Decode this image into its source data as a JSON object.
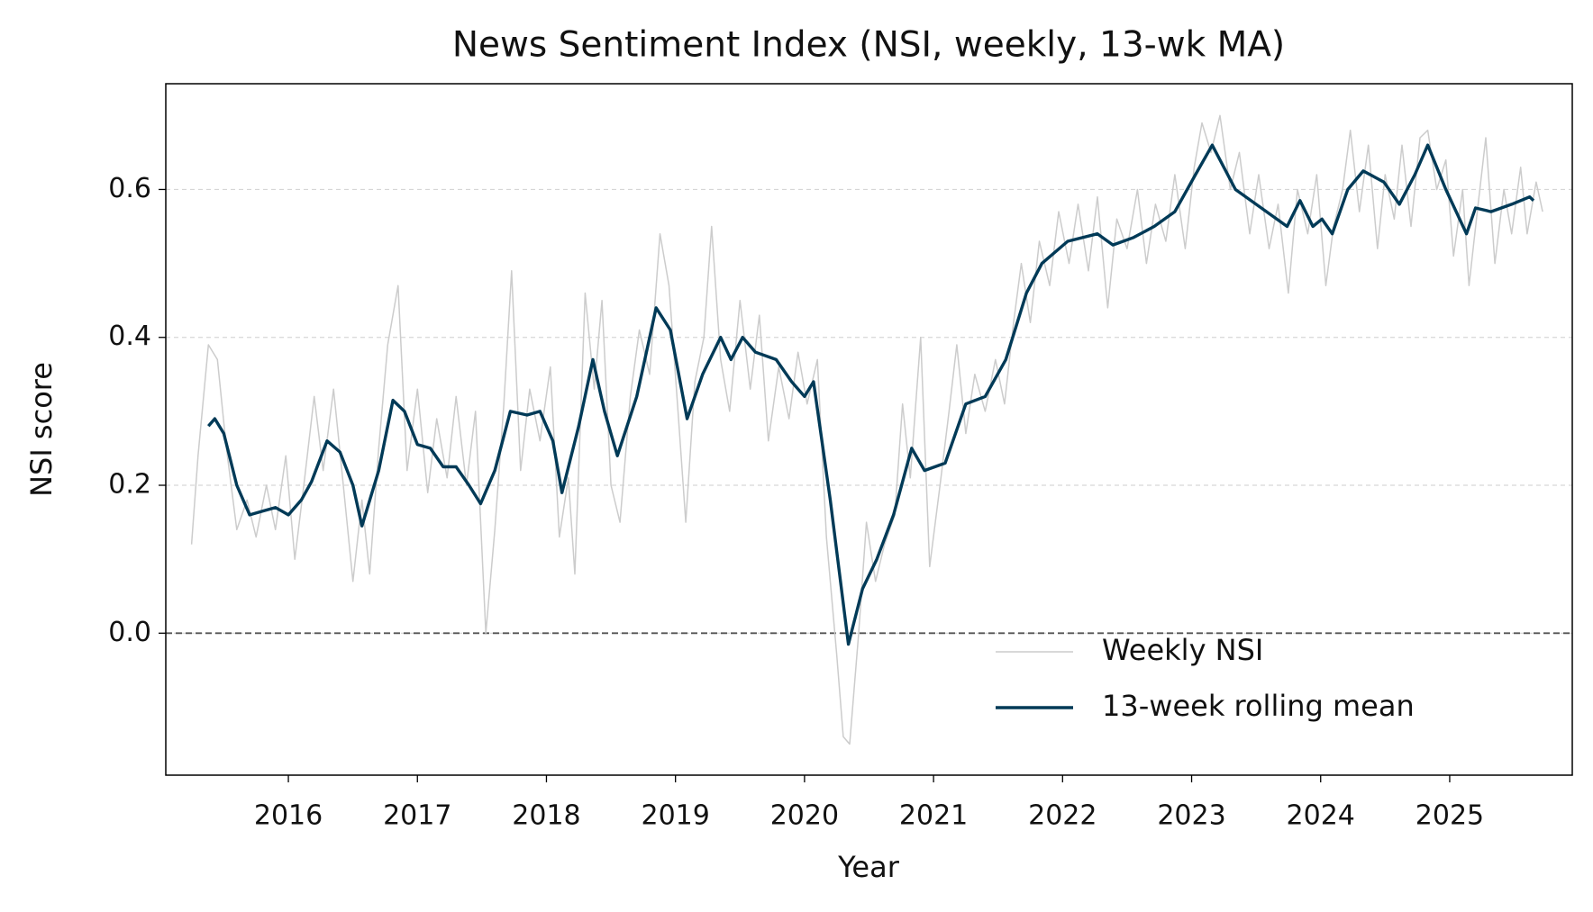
{
  "chart_data": {
    "type": "line",
    "title": "News Sentiment Index (NSI, weekly, 13-wk MA)",
    "x_label": "Year",
    "y_label": "NSI score",
    "xlim": [
      2015.05,
      2025.95
    ],
    "xticks": [
      2016,
      2017,
      2018,
      2019,
      2020,
      2021,
      2022,
      2023,
      2024,
      2025
    ],
    "ylim": [
      -0.192,
      0.743
    ],
    "yticks": [
      {
        "value": 0,
        "label": "0.0"
      },
      0.2,
      0.4,
      0.6
    ],
    "grid": "y",
    "zero_line": true,
    "legend": "lower right",
    "series": [
      {
        "name": "Weekly NSI",
        "color": "#cccccc",
        "width": 1.5,
        "x": [
          2015.25,
          2015.3,
          2015.38,
          2015.45,
          2015.52,
          2015.6,
          2015.68,
          2015.75,
          2015.83,
          2015.9,
          2015.98,
          2016.05,
          2016.12,
          2016.2,
          2016.27,
          2016.35,
          2016.42,
          2016.5,
          2016.57,
          2016.63,
          2016.7,
          2016.77,
          2016.85,
          2016.92,
          2017.0,
          2017.08,
          2017.15,
          2017.23,
          2017.3,
          2017.38,
          2017.45,
          2017.53,
          2017.6,
          2017.67,
          2017.73,
          2017.8,
          2017.87,
          2017.95,
          2018.03,
          2018.1,
          2018.17,
          2018.22,
          2018.3,
          2018.37,
          2018.43,
          2018.5,
          2018.57,
          2018.65,
          2018.72,
          2018.8,
          2018.88,
          2018.95,
          2019.02,
          2019.08,
          2019.15,
          2019.22,
          2019.28,
          2019.35,
          2019.42,
          2019.5,
          2019.58,
          2019.65,
          2019.72,
          2019.8,
          2019.88,
          2019.95,
          2020.02,
          2020.1,
          2020.17,
          2020.25,
          2020.3,
          2020.35,
          2020.42,
          2020.48,
          2020.55,
          2020.62,
          2020.7,
          2020.76,
          2020.82,
          2020.9,
          2020.97,
          2021.05,
          2021.12,
          2021.18,
          2021.25,
          2021.32,
          2021.4,
          2021.48,
          2021.55,
          2021.62,
          2021.68,
          2021.75,
          2021.82,
          2021.9,
          2021.97,
          2022.05,
          2022.12,
          2022.2,
          2022.27,
          2022.35,
          2022.42,
          2022.5,
          2022.58,
          2022.65,
          2022.72,
          2022.8,
          2022.87,
          2022.95,
          2023.02,
          2023.08,
          2023.15,
          2023.22,
          2023.3,
          2023.37,
          2023.45,
          2023.52,
          2023.6,
          2023.67,
          2023.75,
          2023.82,
          2023.9,
          2023.97,
          2024.04,
          2024.1,
          2024.17,
          2024.23,
          2024.3,
          2024.37,
          2024.44,
          2024.5,
          2024.57,
          2024.63,
          2024.7,
          2024.77,
          2024.83,
          2024.9,
          2024.97,
          2025.03,
          2025.1,
          2025.15,
          2025.22,
          2025.28,
          2025.35,
          2025.42,
          2025.48,
          2025.55,
          2025.6,
          2025.67,
          2025.72
        ],
        "values": [
          0.12,
          0.24,
          0.39,
          0.37,
          0.25,
          0.14,
          0.18,
          0.13,
          0.2,
          0.14,
          0.24,
          0.1,
          0.2,
          0.32,
          0.22,
          0.33,
          0.21,
          0.07,
          0.18,
          0.08,
          0.25,
          0.39,
          0.47,
          0.22,
          0.33,
          0.19,
          0.29,
          0.21,
          0.32,
          0.2,
          0.3,
          0.0,
          0.14,
          0.31,
          0.49,
          0.22,
          0.33,
          0.26,
          0.36,
          0.13,
          0.21,
          0.08,
          0.46,
          0.33,
          0.45,
          0.2,
          0.15,
          0.32,
          0.41,
          0.35,
          0.54,
          0.47,
          0.3,
          0.15,
          0.34,
          0.4,
          0.55,
          0.37,
          0.3,
          0.45,
          0.33,
          0.43,
          0.26,
          0.36,
          0.29,
          0.38,
          0.31,
          0.37,
          0.13,
          -0.03,
          -0.14,
          -0.15,
          0.0,
          0.15,
          0.07,
          0.12,
          0.16,
          0.31,
          0.21,
          0.4,
          0.09,
          0.2,
          0.3,
          0.39,
          0.27,
          0.35,
          0.3,
          0.37,
          0.31,
          0.42,
          0.5,
          0.42,
          0.53,
          0.47,
          0.57,
          0.5,
          0.58,
          0.49,
          0.59,
          0.44,
          0.56,
          0.52,
          0.6,
          0.5,
          0.58,
          0.53,
          0.62,
          0.52,
          0.63,
          0.69,
          0.65,
          0.7,
          0.6,
          0.65,
          0.54,
          0.62,
          0.52,
          0.58,
          0.46,
          0.6,
          0.54,
          0.62,
          0.47,
          0.55,
          0.6,
          0.68,
          0.57,
          0.66,
          0.52,
          0.62,
          0.56,
          0.66,
          0.55,
          0.67,
          0.68,
          0.6,
          0.64,
          0.51,
          0.6,
          0.47,
          0.58,
          0.67,
          0.5,
          0.6,
          0.54,
          0.63,
          0.54,
          0.61,
          0.57
        ]
      },
      {
        "name": "13-week rolling mean",
        "color": "#003a57",
        "width": 3.4,
        "x": [
          2015.38,
          2015.43,
          2015.5,
          2015.6,
          2015.7,
          2015.8,
          2015.9,
          2016.0,
          2016.1,
          2016.18,
          2016.3,
          2016.4,
          2016.5,
          2016.57,
          2016.7,
          2016.81,
          2016.9,
          2017.0,
          2017.1,
          2017.2,
          2017.3,
          2017.4,
          2017.49,
          2017.6,
          2017.72,
          2017.85,
          2017.95,
          2018.05,
          2018.12,
          2018.25,
          2018.36,
          2018.45,
          2018.55,
          2018.7,
          2018.85,
          2018.96,
          2019.09,
          2019.21,
          2019.35,
          2019.43,
          2019.52,
          2019.62,
          2019.78,
          2019.9,
          2020.0,
          2020.07,
          2020.2,
          2020.34,
          2020.45,
          2020.56,
          2020.69,
          2020.83,
          2020.93,
          2021.09,
          2021.25,
          2021.4,
          2021.56,
          2021.72,
          2021.84,
          2022.04,
          2022.27,
          2022.39,
          2022.55,
          2022.71,
          2022.87,
          2023.03,
          2023.16,
          2023.34,
          2023.58,
          2023.74,
          2023.84,
          2023.94,
          2024.01,
          2024.09,
          2024.21,
          2024.33,
          2024.49,
          2024.61,
          2024.73,
          2024.83,
          2024.97,
          2025.13,
          2025.2,
          2025.32,
          2025.48,
          2025.62,
          2025.65
        ],
        "values": [
          0.28,
          0.29,
          0.27,
          0.2,
          0.16,
          0.165,
          0.17,
          0.16,
          0.18,
          0.205,
          0.26,
          0.245,
          0.2,
          0.145,
          0.22,
          0.315,
          0.3,
          0.255,
          0.25,
          0.225,
          0.225,
          0.2,
          0.175,
          0.22,
          0.3,
          0.295,
          0.3,
          0.26,
          0.19,
          0.28,
          0.37,
          0.3,
          0.24,
          0.32,
          0.44,
          0.41,
          0.29,
          0.35,
          0.4,
          0.37,
          0.4,
          0.38,
          0.37,
          0.34,
          0.32,
          0.34,
          0.18,
          -0.015,
          0.06,
          0.1,
          0.16,
          0.25,
          0.22,
          0.23,
          0.31,
          0.32,
          0.37,
          0.46,
          0.5,
          0.53,
          0.54,
          0.525,
          0.535,
          0.55,
          0.57,
          0.62,
          0.66,
          0.6,
          0.57,
          0.55,
          0.585,
          0.55,
          0.56,
          0.54,
          0.6,
          0.625,
          0.61,
          0.58,
          0.62,
          0.66,
          0.6,
          0.54,
          0.575,
          0.57,
          0.58,
          0.59,
          0.585
        ]
      }
    ]
  }
}
